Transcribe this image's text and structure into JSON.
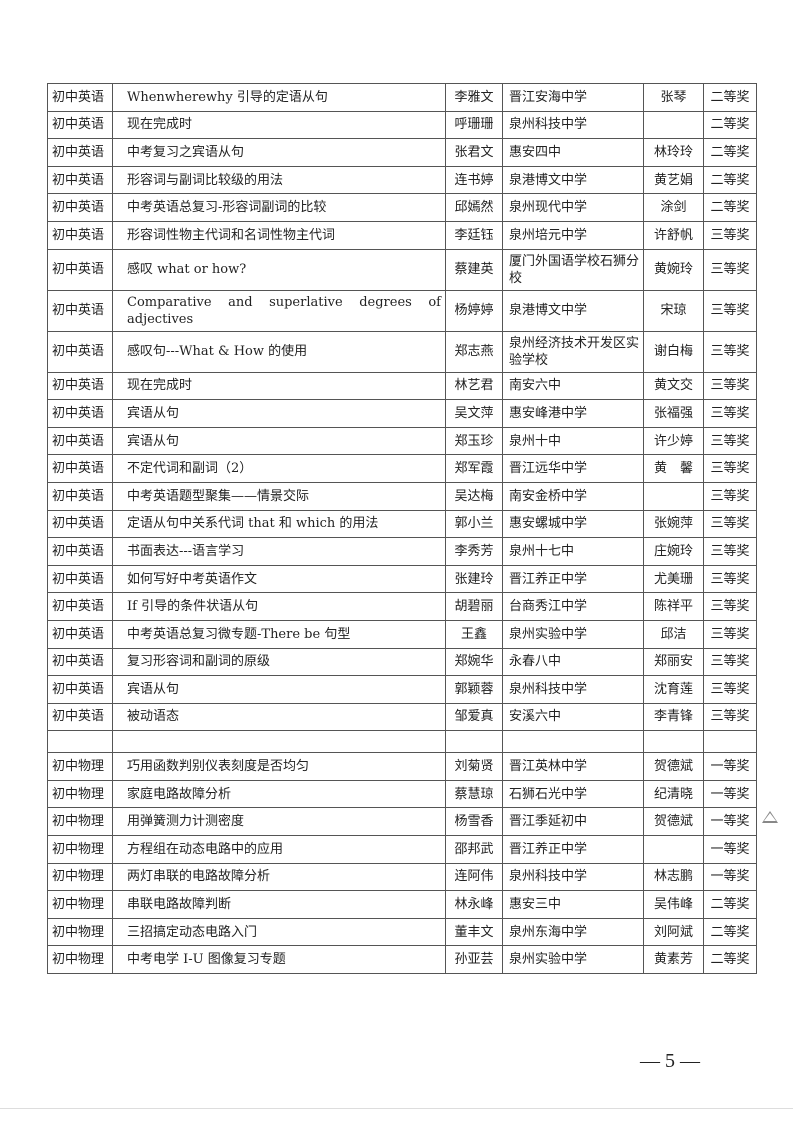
{
  "rows": [
    [
      "初中英语",
      "Whenwherewhy 引导的定语从句",
      "李雅文",
      "晋江安海中学",
      "张琴",
      "二等奖"
    ],
    [
      "初中英语",
      "现在完成时",
      "呼珊珊",
      "泉州科技中学",
      "",
      "二等奖"
    ],
    [
      "初中英语",
      "中考复习之宾语从句",
      "张君文",
      "惠安四中",
      "林玲玲",
      "二等奖"
    ],
    [
      "初中英语",
      "形容词与副词比较级的用法",
      "连书婷",
      "泉港博文中学",
      "黄艺娟",
      "二等奖"
    ],
    [
      "初中英语",
      "中考英语总复习-形容词副词的比较",
      "邱嫣然",
      "泉州现代中学",
      "涂剑",
      "二等奖"
    ],
    [
      "初中英语",
      "形容词性物主代词和名词性物主代词",
      "李廷钰",
      "泉州培元中学",
      "许舒帆",
      "三等奖"
    ],
    [
      "初中英语",
      "感叹 what or how?",
      "蔡建英",
      "厦门外国语学校石狮分校",
      "黄婉玲",
      "三等奖"
    ],
    [
      "初中英语",
      "Comparative and superlative degrees of adjectives",
      "杨婷婷",
      "泉港博文中学",
      "宋琼",
      "三等奖"
    ],
    [
      "初中英语",
      "感叹句---What & How 的使用",
      "郑志燕",
      "泉州经济技术开发区实验学校",
      "谢白梅",
      "三等奖"
    ],
    [
      "初中英语",
      "现在完成时",
      "林艺君",
      "南安六中",
      "黄文交",
      "三等奖"
    ],
    [
      "初中英语",
      "宾语从句",
      "吴文萍",
      "惠安峰港中学",
      "张福强",
      "三等奖"
    ],
    [
      "初中英语",
      "宾语从句",
      "郑玉珍",
      "泉州十中",
      "许少婷",
      "三等奖"
    ],
    [
      "初中英语",
      "不定代词和副词（2）",
      "郑军霞",
      "晋江远华中学",
      "黄　馨",
      "三等奖"
    ],
    [
      "初中英语",
      "中考英语题型聚集——情景交际",
      "吴达梅",
      "南安金桥中学",
      "",
      "三等奖"
    ],
    [
      "初中英语",
      "定语从句中关系代词 that 和 which 的用法",
      "郭小兰",
      "惠安螺城中学",
      "张婉萍",
      "三等奖"
    ],
    [
      "初中英语",
      "书面表达---语言学习",
      "李秀芳",
      "泉州十七中",
      "庄婉玲",
      "三等奖"
    ],
    [
      "初中英语",
      "如何写好中考英语作文",
      "张建玲",
      "晋江养正中学",
      "尤美珊",
      "三等奖"
    ],
    [
      "初中英语",
      "If 引导的条件状语从句",
      "胡碧丽",
      "台商秀江中学",
      "陈祥平",
      "三等奖"
    ],
    [
      "初中英语",
      "中考英语总复习微专题-There be 句型",
      "王鑫",
      "泉州实验中学",
      "邱洁",
      "三等奖"
    ],
    [
      "初中英语",
      "复习形容词和副词的原级",
      "郑婉华",
      "永春八中",
      "郑丽安",
      "三等奖"
    ],
    [
      "初中英语",
      "宾语从句",
      "郭颖蓉",
      "泉州科技中学",
      "沈育莲",
      "三等奖"
    ],
    [
      "初中英语",
      "被动语态",
      "邹爱真",
      "安溪六中",
      "李青锋",
      "三等奖"
    ],
    [
      "",
      "",
      "",
      "",
      "",
      ""
    ],
    [
      "初中物理",
      "巧用函数判别仪表刻度是否均匀",
      "刘菊贤",
      "晋江英林中学",
      "贺德斌",
      "一等奖"
    ],
    [
      "初中物理",
      "家庭电路故障分析",
      "蔡慧琼",
      "石狮石光中学",
      "纪清晓",
      "一等奖"
    ],
    [
      "初中物理",
      "用弹簧测力计测密度",
      "杨雪香",
      "晋江季延初中",
      "贺德斌",
      "一等奖"
    ],
    [
      "初中物理",
      "方程组在动态电路中的应用",
      "邵邦武",
      "晋江养正中学",
      "",
      "一等奖"
    ],
    [
      "初中物理",
      "两灯串联的电路故障分析",
      "连阿伟",
      "泉州科技中学",
      "林志鹏",
      "一等奖"
    ],
    [
      "初中物理",
      "串联电路故障判断",
      "林永峰",
      "惠安三中",
      "吴伟峰",
      "二等奖"
    ],
    [
      "初中物理",
      "三招搞定动态电路入门",
      "董丰文",
      "泉州东海中学",
      "刘阿斌",
      "二等奖"
    ],
    [
      "初中物理",
      "中考电学 I-U 图像复习专题",
      "孙亚芸",
      "泉州实验中学",
      "黄素芳",
      "二等奖"
    ]
  ],
  "page_number": "— 5 —",
  "margin_icon": "triangle-outline-icon"
}
